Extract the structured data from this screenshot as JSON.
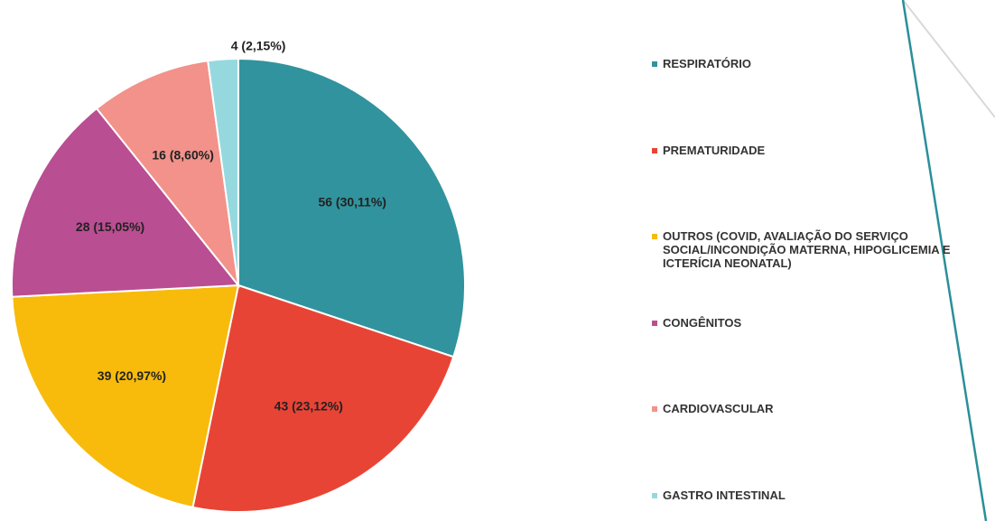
{
  "chart_data": {
    "type": "pie",
    "categories": [
      "RESPIRATÓRIO",
      "PREMATURIDADE",
      "OUTROS (COVID, AVALIAÇÃO DO SERVIÇO SOCIAL/INCONDIÇÃO MATERNA, HIPOGLICEMIA E ICTERÍCIA NEONATAL)",
      "CONGÊNITOS",
      "CARDIOVASCULAR",
      "GASTRO INTESTINAL"
    ],
    "values": [
      56,
      43,
      39,
      28,
      16,
      4
    ],
    "value_labels": [
      "56 (30,11%)",
      "43 (23,12%)",
      "39 (20,97%)",
      "28 (15,05%)",
      "16 (8,60%)",
      "4 (2,15%)"
    ],
    "colors": [
      "#31939d",
      "#e84435",
      "#f8bb0b",
      "#b94e92",
      "#f2928a",
      "#95d9df"
    ],
    "legend": "right"
  }
}
